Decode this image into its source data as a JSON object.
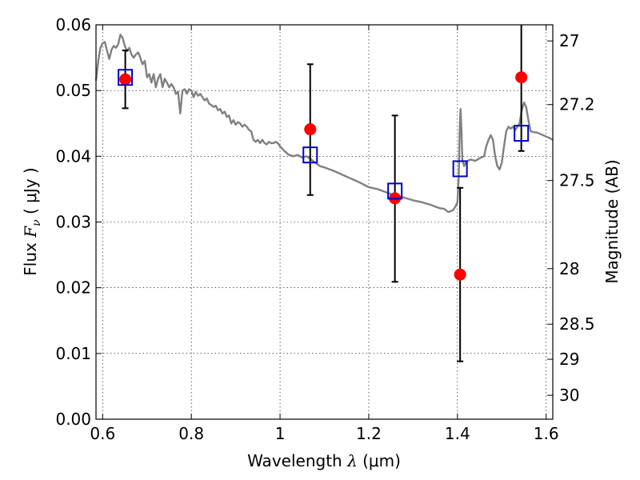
{
  "chart_data": {
    "type": "scatter",
    "xlabel": {
      "prefix": "Wavelength",
      "symbol": "λ",
      "unit": " (μm)"
    },
    "ylabel": {
      "prefix": "Flux",
      "symbol": "F",
      "subscript": "ν",
      "unit": "(  μJy )"
    },
    "y2label": "Magnitude (AB)",
    "xlim": [
      0.585,
      1.615
    ],
    "ylim": [
      0.0,
      0.06
    ],
    "grid": true,
    "xticks": [
      {
        "value": 0.6,
        "label": "0.6"
      },
      {
        "value": 0.8,
        "label": "0.8"
      },
      {
        "value": 1.0,
        "label": "1"
      },
      {
        "value": 1.2,
        "label": "1.2"
      },
      {
        "value": 1.4,
        "label": "1.4"
      },
      {
        "value": 1.6,
        "label": "1.6"
      }
    ],
    "yticks": [
      {
        "value": 0.0,
        "label": "0.00"
      },
      {
        "value": 0.01,
        "label": "0.01"
      },
      {
        "value": 0.02,
        "label": "0.02"
      },
      {
        "value": 0.03,
        "label": "0.03"
      },
      {
        "value": 0.04,
        "label": "0.04"
      },
      {
        "value": 0.05,
        "label": "0.05"
      },
      {
        "value": 0.06,
        "label": "0.06"
      }
    ],
    "y2ticks": [
      {
        "mag": 27.0,
        "label": "27"
      },
      {
        "mag": 27.2,
        "label": "27.2"
      },
      {
        "mag": 27.5,
        "label": "27.5"
      },
      {
        "mag": 28.0,
        "label": "28"
      },
      {
        "mag": 28.5,
        "label": "28.5"
      },
      {
        "mag": 29.0,
        "label": "29"
      },
      {
        "mag": 30.0,
        "label": "30"
      }
    ],
    "colors": {
      "model": "#808080",
      "observed": "#ff0000",
      "synthetic": "#0000cc",
      "errorbar": "#000000"
    },
    "series": [
      {
        "kind": "line",
        "points": [
          [
            0.585,
            0.0515
          ],
          [
            0.59,
            0.0545
          ],
          [
            0.595,
            0.0565
          ],
          [
            0.6,
            0.0572
          ],
          [
            0.605,
            0.0574
          ],
          [
            0.61,
            0.056
          ],
          [
            0.615,
            0.0548
          ],
          [
            0.62,
            0.0562
          ],
          [
            0.625,
            0.0568
          ],
          [
            0.63,
            0.0565
          ],
          [
            0.635,
            0.057
          ],
          [
            0.64,
            0.0585
          ],
          [
            0.645,
            0.058
          ],
          [
            0.65,
            0.0568
          ],
          [
            0.655,
            0.056
          ],
          [
            0.66,
            0.0565
          ],
          [
            0.665,
            0.0555
          ],
          [
            0.67,
            0.055
          ],
          [
            0.675,
            0.0555
          ],
          [
            0.68,
            0.0558
          ],
          [
            0.685,
            0.055
          ],
          [
            0.69,
            0.054
          ],
          [
            0.695,
            0.0545
          ],
          [
            0.7,
            0.052
          ],
          [
            0.705,
            0.0525
          ],
          [
            0.71,
            0.0512
          ],
          [
            0.715,
            0.0525
          ],
          [
            0.72,
            0.0505
          ],
          [
            0.725,
            0.0518
          ],
          [
            0.73,
            0.0525
          ],
          [
            0.735,
            0.0505
          ],
          [
            0.74,
            0.0518
          ],
          [
            0.745,
            0.0512
          ],
          [
            0.75,
            0.0505
          ],
          [
            0.755,
            0.051
          ],
          [
            0.76,
            0.0505
          ],
          [
            0.765,
            0.0495
          ],
          [
            0.77,
            0.0498
          ],
          [
            0.775,
            0.0465
          ],
          [
            0.78,
            0.05
          ],
          [
            0.785,
            0.0502
          ],
          [
            0.79,
            0.0495
          ],
          [
            0.795,
            0.0502
          ],
          [
            0.8,
            0.05
          ],
          [
            0.805,
            0.049
          ],
          [
            0.81,
            0.0498
          ],
          [
            0.815,
            0.0492
          ],
          [
            0.82,
            0.0495
          ],
          [
            0.825,
            0.049
          ],
          [
            0.83,
            0.0485
          ],
          [
            0.835,
            0.0488
          ],
          [
            0.84,
            0.048
          ],
          [
            0.845,
            0.0478
          ],
          [
            0.85,
            0.0475
          ],
          [
            0.855,
            0.0477
          ],
          [
            0.86,
            0.047
          ],
          [
            0.865,
            0.0472
          ],
          [
            0.87,
            0.0465
          ],
          [
            0.875,
            0.0468
          ],
          [
            0.88,
            0.046
          ],
          [
            0.885,
            0.0462
          ],
          [
            0.89,
            0.045
          ],
          [
            0.895,
            0.0455
          ],
          [
            0.9,
            0.0448
          ],
          [
            0.905,
            0.0452
          ],
          [
            0.91,
            0.045
          ],
          [
            0.915,
            0.0445
          ],
          [
            0.92,
            0.0448
          ],
          [
            0.925,
            0.0445
          ],
          [
            0.93,
            0.044
          ],
          [
            0.935,
            0.0438
          ],
          [
            0.94,
            0.0425
          ],
          [
            0.945,
            0.0422
          ],
          [
            0.95,
            0.0425
          ],
          [
            0.955,
            0.042
          ],
          [
            0.96,
            0.0425
          ],
          [
            0.965,
            0.042
          ],
          [
            0.97,
            0.0418
          ],
          [
            0.975,
            0.0422
          ],
          [
            0.98,
            0.042
          ],
          [
            0.985,
            0.042
          ],
          [
            0.99,
            0.0422
          ],
          [
            0.995,
            0.042
          ],
          [
            1.0,
            0.0415
          ],
          [
            1.01,
            0.0408
          ],
          [
            1.02,
            0.0402
          ],
          [
            1.03,
            0.04
          ],
          [
            1.04,
            0.0402
          ],
          [
            1.05,
            0.0398
          ],
          [
            1.06,
            0.04
          ],
          [
            1.07,
            0.0395
          ],
          [
            1.08,
            0.039
          ],
          [
            1.09,
            0.0385
          ],
          [
            1.1,
            0.0383
          ],
          [
            1.12,
            0.0378
          ],
          [
            1.14,
            0.0372
          ],
          [
            1.16,
            0.0366
          ],
          [
            1.18,
            0.036
          ],
          [
            1.2,
            0.0353
          ],
          [
            1.22,
            0.035
          ],
          [
            1.24,
            0.0345
          ],
          [
            1.26,
            0.034
          ],
          [
            1.28,
            0.0337
          ],
          [
            1.3,
            0.0333
          ],
          [
            1.32,
            0.033
          ],
          [
            1.34,
            0.0326
          ],
          [
            1.36,
            0.0321
          ],
          [
            1.37,
            0.032
          ],
          [
            1.38,
            0.0315
          ],
          [
            1.39,
            0.0318
          ],
          [
            1.395,
            0.0323
          ],
          [
            1.4,
            0.033
          ],
          [
            1.403,
            0.037
          ],
          [
            1.405,
            0.044
          ],
          [
            1.407,
            0.0472
          ],
          [
            1.409,
            0.044
          ],
          [
            1.411,
            0.0395
          ],
          [
            1.415,
            0.0385
          ],
          [
            1.42,
            0.0392
          ],
          [
            1.43,
            0.0395
          ],
          [
            1.44,
            0.0393
          ],
          [
            1.45,
            0.0397
          ],
          [
            1.46,
            0.04
          ],
          [
            1.465,
            0.0415
          ],
          [
            1.47,
            0.0425
          ],
          [
            1.475,
            0.0432
          ],
          [
            1.48,
            0.0425
          ],
          [
            1.485,
            0.04
          ],
          [
            1.49,
            0.0385
          ],
          [
            1.495,
            0.038
          ],
          [
            1.5,
            0.039
          ],
          [
            1.505,
            0.0415
          ],
          [
            1.51,
            0.0438
          ],
          [
            1.515,
            0.0445
          ],
          [
            1.52,
            0.0442
          ],
          [
            1.525,
            0.0445
          ],
          [
            1.53,
            0.044
          ],
          [
            1.535,
            0.0445
          ],
          [
            1.54,
            0.045
          ],
          [
            1.545,
            0.047
          ],
          [
            1.55,
            0.0482
          ],
          [
            1.555,
            0.0475
          ],
          [
            1.56,
            0.0455
          ],
          [
            1.565,
            0.0438
          ],
          [
            1.57,
            0.0437
          ],
          [
            1.58,
            0.0436
          ],
          [
            1.59,
            0.0433
          ],
          [
            1.6,
            0.043
          ],
          [
            1.61,
            0.0427
          ],
          [
            1.615,
            0.0425
          ]
        ]
      },
      {
        "kind": "errorbar-points",
        "points": [
          {
            "x": 0.651,
            "y": 0.0517,
            "yerr_low": 0.0044,
            "yerr_high": 0.0044
          },
          {
            "x": 1.068,
            "y": 0.0441,
            "yerr_low": 0.01,
            "yerr_high": 0.0099
          },
          {
            "x": 1.259,
            "y": 0.0336,
            "yerr_low": 0.0127,
            "yerr_high": 0.0126
          },
          {
            "x": 1.406,
            "y": 0.022,
            "yerr_low": 0.0132,
            "yerr_high": 0.0132
          },
          {
            "x": 1.544,
            "y": 0.052,
            "yerr_low": 0.0112,
            "yerr_high": 0.009
          }
        ]
      },
      {
        "kind": "squares",
        "points": [
          {
            "x": 0.651,
            "y": 0.052
          },
          {
            "x": 1.068,
            "y": 0.0402
          },
          {
            "x": 1.259,
            "y": 0.0347
          },
          {
            "x": 1.406,
            "y": 0.0381
          },
          {
            "x": 1.544,
            "y": 0.0435
          }
        ]
      }
    ]
  }
}
